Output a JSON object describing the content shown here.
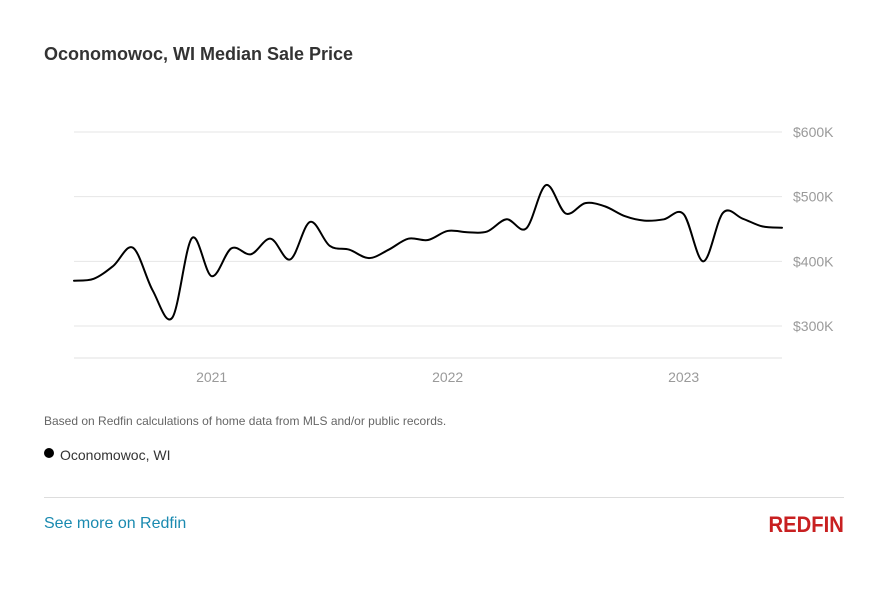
{
  "title": "Oconomowoc, WI Median Sale Price",
  "footnote": "Based on Redfin calculations of home data from MLS and/or public records.",
  "legend": {
    "label": "Oconomowoc, WI",
    "color": "#000000"
  },
  "footer": {
    "link_label": "See more on Redfin",
    "link_color": "#1a8ab0",
    "logo_text": "REDFIN",
    "logo_color": "#c82021"
  },
  "chart_data": {
    "type": "line",
    "title": "Oconomowoc, WI Median Sale Price",
    "xlabel": "",
    "ylabel": "",
    "x_ticks": [
      "2021",
      "2022",
      "2023"
    ],
    "y_ticks": [
      "$300K",
      "$400K",
      "$500K",
      "$600K"
    ],
    "y_tick_values": [
      300000,
      400000,
      500000,
      600000
    ],
    "ylim": [
      250000,
      600000
    ],
    "xlim": [
      "2020-06",
      "2023-06"
    ],
    "grid": true,
    "legend_position": "bottom-left",
    "series": [
      {
        "name": "Oconomowoc, WI",
        "color": "#000000",
        "x": [
          "2020-06",
          "2020-07",
          "2020-08",
          "2020-09",
          "2020-10",
          "2020-11",
          "2020-12",
          "2021-01",
          "2021-02",
          "2021-03",
          "2021-04",
          "2021-05",
          "2021-06",
          "2021-07",
          "2021-08",
          "2021-09",
          "2021-10",
          "2021-11",
          "2021-12",
          "2022-01",
          "2022-02",
          "2022-03",
          "2022-04",
          "2022-05",
          "2022-06",
          "2022-07",
          "2022-08",
          "2022-09",
          "2022-10",
          "2022-11",
          "2022-12",
          "2023-01",
          "2023-02",
          "2023-03",
          "2023-04",
          "2023-05",
          "2023-06"
        ],
        "values": [
          370000,
          373000,
          393000,
          421000,
          355000,
          313000,
          436000,
          377000,
          420000,
          411000,
          435000,
          403000,
          461000,
          424000,
          418000,
          405000,
          418000,
          435000,
          433000,
          447000,
          445000,
          446000,
          465000,
          451000,
          518000,
          474000,
          490000,
          485000,
          470000,
          463000,
          465000,
          473000,
          400000,
          475000,
          466000,
          454000,
          452000
        ]
      }
    ]
  }
}
